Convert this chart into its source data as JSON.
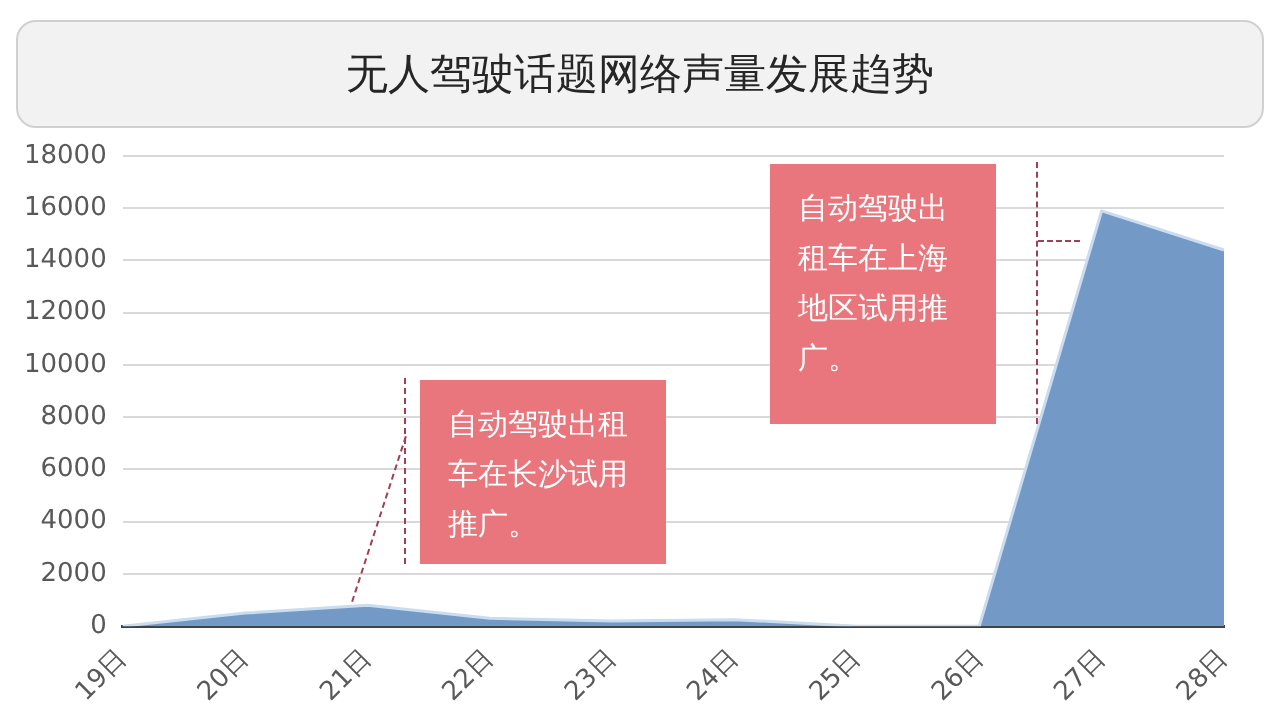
{
  "chart_data": {
    "type": "area",
    "title": "无人驾驶话题网络声量发展趋势",
    "categories": [
      "19日",
      "20日",
      "21日",
      "22日",
      "23日",
      "24日",
      "25日",
      "26日",
      "27日",
      "28日"
    ],
    "series": [
      {
        "color": "#7399c6",
        "values": [
          0,
          500,
          800,
          300,
          200,
          250,
          0,
          0,
          15900,
          14400
        ]
      }
    ],
    "ylim": [
      0,
      18000
    ],
    "yticks": [
      0,
      2000,
      4000,
      6000,
      8000,
      10000,
      12000,
      14000,
      16000,
      18000
    ],
    "grid": "y",
    "legend": false,
    "annotations": [
      "自动驾驶出租车在长沙试用推广。",
      "自动驾驶出租车在上海地区试用推广。"
    ]
  }
}
